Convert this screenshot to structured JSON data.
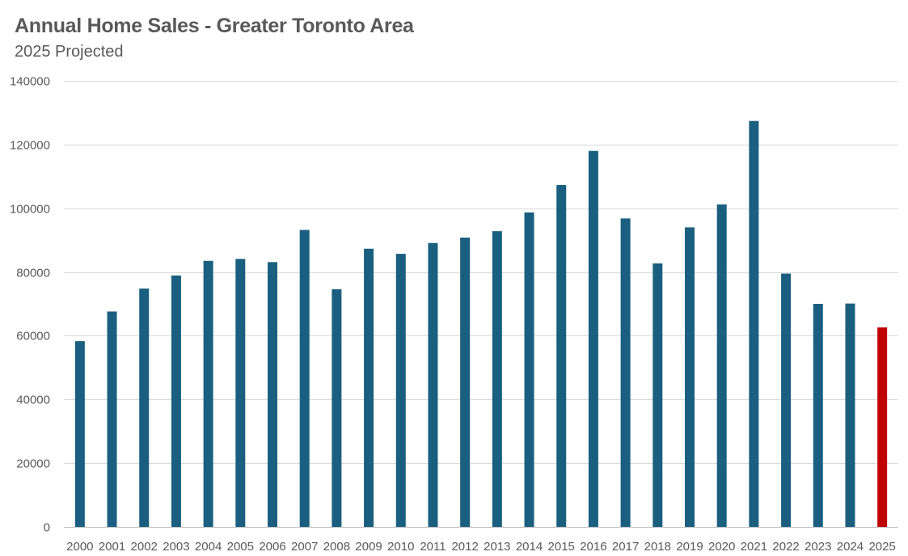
{
  "chart_data": {
    "type": "bar",
    "title": "Annual Home Sales - Greater Toronto Area",
    "subtitle": "2025 Projected",
    "xlabel": "",
    "ylabel": "",
    "ylim": [
      0,
      140000
    ],
    "yticks": [
      0,
      20000,
      40000,
      60000,
      80000,
      100000,
      120000,
      140000
    ],
    "grid": true,
    "legend": "none",
    "categories": [
      "2000",
      "2001",
      "2002",
      "2003",
      "2004",
      "2005",
      "2006",
      "2007",
      "2008",
      "2009",
      "2010",
      "2011",
      "2012",
      "2013",
      "2014",
      "2015",
      "2016",
      "2017",
      "2018",
      "2019",
      "2020",
      "2021",
      "2022",
      "2023",
      "2024",
      "2025"
    ],
    "series": [
      {
        "name": "Home Sales",
        "values": [
          58300,
          67600,
          74800,
          78900,
          83500,
          84100,
          83100,
          93200,
          74600,
          87300,
          85700,
          89100,
          90800,
          92800,
          98700,
          107300,
          118000,
          96800,
          82700,
          94000,
          101200,
          127400,
          79500,
          70000,
          70100,
          62600
        ]
      }
    ],
    "colors": {
      "bar": "#1a5f7f",
      "projected_bar": "#c00000",
      "gridline": "#d9d9d9",
      "text": "#595959"
    },
    "projected_category": "2025"
  }
}
